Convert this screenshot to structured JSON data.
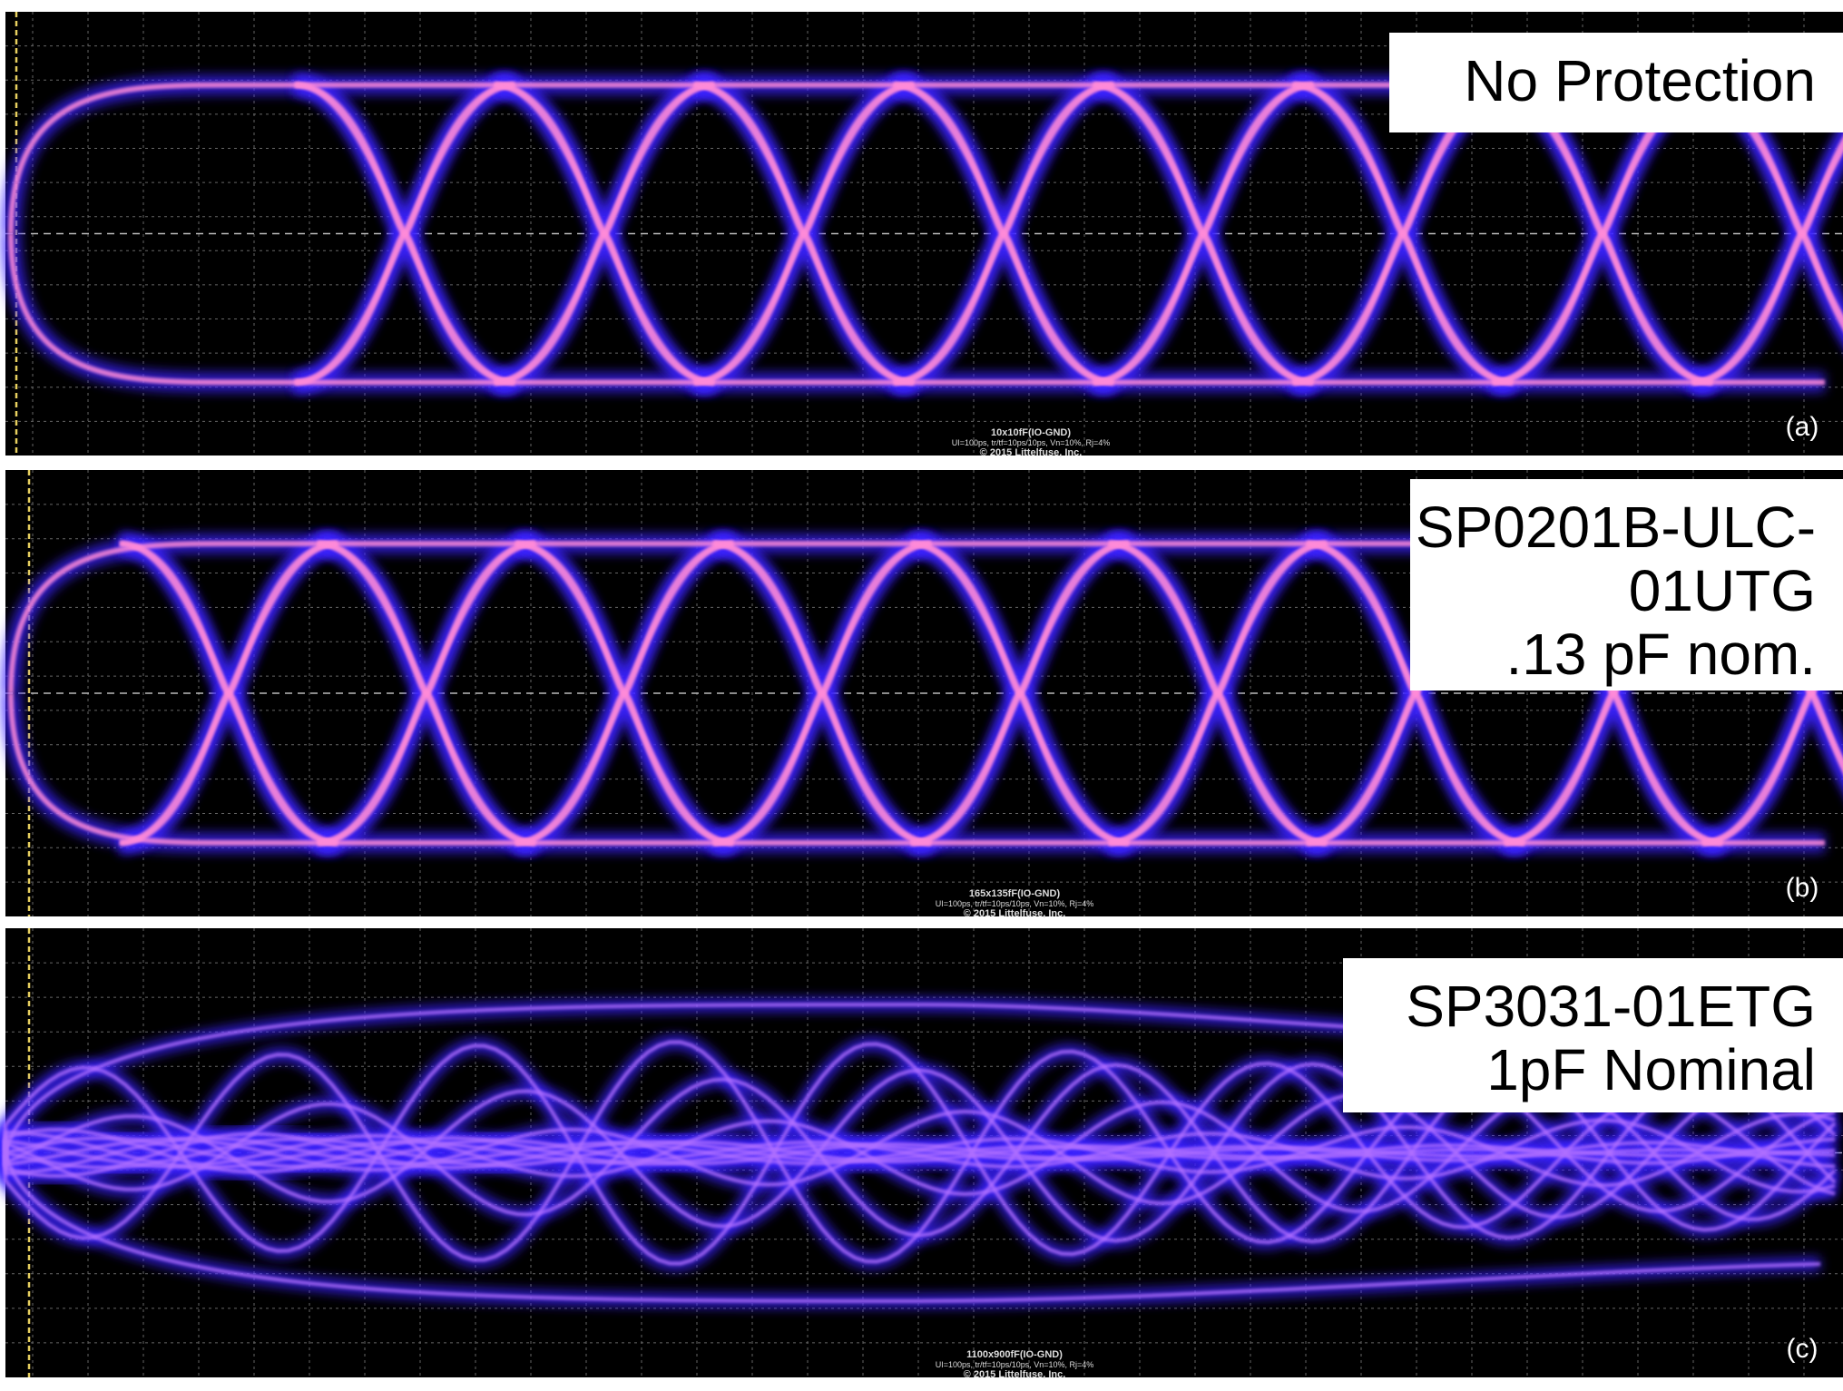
{
  "panels": [
    {
      "label": [
        "No Protection"
      ],
      "letter": "(a)",
      "caption": [
        "10x10fF(IO-GND)",
        "UI=100ps, tr/tf=10ps/10ps, Vn=10%, Rj=4%",
        "© 2015 Littelfuse, Inc."
      ]
    },
    {
      "label": [
        "SP0201B-ULC-",
        "01UTG",
        ".13 pF nom."
      ],
      "letter": "(b)",
      "caption": [
        "165x135fF(IO-GND)",
        "UI=100ps, tr/tf=10ps/10ps, Vn=10%, Rj=4%",
        "© 2015 Littelfuse, Inc."
      ]
    },
    {
      "label": [
        "SP3031-01ETG",
        "1pF Nominal"
      ],
      "letter": "(c)",
      "caption": [
        "1100x900fF(IO-GND)",
        "UI=100ps, tr/tf=10ps/10ps, Vn=10%, Rj=4%",
        "© 2015 Littelfuse, Inc."
      ]
    }
  ]
}
